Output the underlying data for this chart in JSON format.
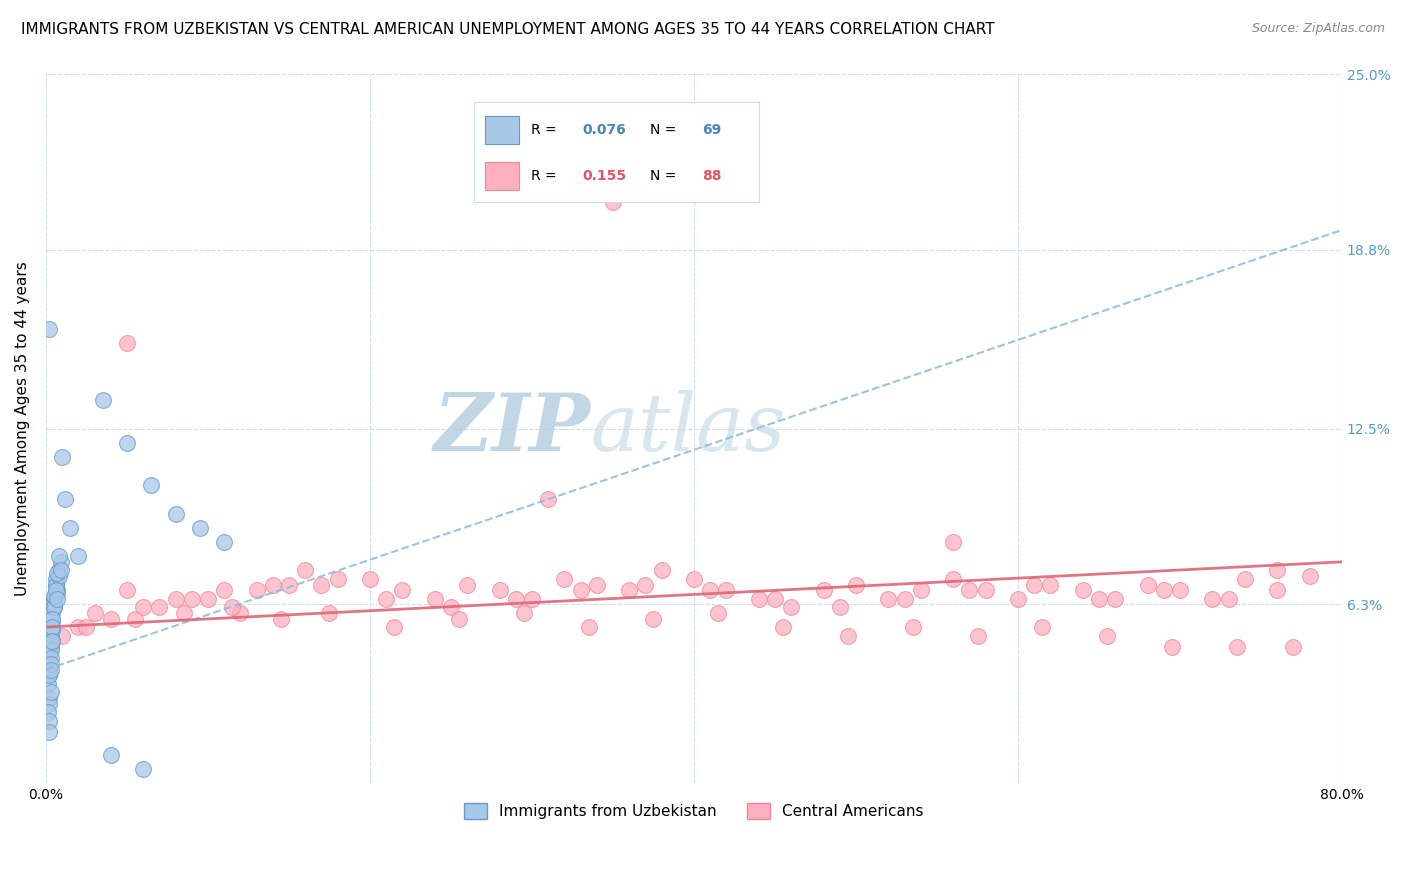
{
  "title": "IMMIGRANTS FROM UZBEKISTAN VS CENTRAL AMERICAN UNEMPLOYMENT AMONG AGES 35 TO 44 YEARS CORRELATION CHART",
  "source": "Source: ZipAtlas.com",
  "ylabel": "Unemployment Among Ages 35 to 44 years",
  "xlim": [
    0.0,
    0.8
  ],
  "ylim": [
    0.0,
    0.25
  ],
  "yticks": [
    0.063,
    0.125,
    0.188,
    0.25
  ],
  "ytick_labels": [
    "6.3%",
    "12.5%",
    "18.8%",
    "25.0%"
  ],
  "xticks": [
    0.0,
    0.2,
    0.4,
    0.6,
    0.8
  ],
  "xtick_labels": [
    "0.0%",
    "",
    "",
    "",
    "80.0%"
  ],
  "series1_label": "Immigrants from Uzbekistan",
  "series1_R": "0.076",
  "series1_N": "69",
  "series1_color": "#a8c8e8",
  "series1_edge": "#6699cc",
  "series2_label": "Central Americans",
  "series2_R": "0.155",
  "series2_N": "88",
  "series2_color": "#ffb0c0",
  "series2_edge": "#ee8899",
  "trendline1_color": "#88bbdd",
  "trendline2_color": "#dd6677",
  "background_color": "#ffffff",
  "watermark": "ZIPatlas",
  "watermark_color": "#ccdde8",
  "grid_color": "#ccddee",
  "title_fontsize": 11,
  "axis_label_fontsize": 11,
  "tick_fontsize": 10,
  "right_tick_color": "#5599cc",
  "legend_R_color1": "#4488bb",
  "legend_R_color2": "#dd5566",
  "legend_N_color1": "#4488bb",
  "legend_N_color2": "#dd5566",
  "blue_x": [
    0.002,
    0.004,
    0.001,
    0.003,
    0.005,
    0.002,
    0.001,
    0.003,
    0.002,
    0.004,
    0.006,
    0.003,
    0.002,
    0.005,
    0.001,
    0.007,
    0.003,
    0.002,
    0.004,
    0.001,
    0.008,
    0.003,
    0.005,
    0.002,
    0.006,
    0.004,
    0.003,
    0.001,
    0.007,
    0.002,
    0.009,
    0.004,
    0.002,
    0.006,
    0.003,
    0.001,
    0.005,
    0.008,
    0.002,
    0.003,
    0.01,
    0.004,
    0.002,
    0.007,
    0.003,
    0.005,
    0.002,
    0.001,
    0.004,
    0.003,
    0.012,
    0.006,
    0.003,
    0.008,
    0.002,
    0.015,
    0.004,
    0.009,
    0.002,
    0.007,
    0.02,
    0.035,
    0.05,
    0.065,
    0.08,
    0.095,
    0.11,
    0.04,
    0.06
  ],
  "blue_y": [
    0.16,
    0.055,
    0.06,
    0.058,
    0.062,
    0.055,
    0.052,
    0.048,
    0.045,
    0.05,
    0.07,
    0.058,
    0.053,
    0.065,
    0.047,
    0.068,
    0.055,
    0.042,
    0.06,
    0.045,
    0.075,
    0.052,
    0.063,
    0.048,
    0.072,
    0.057,
    0.05,
    0.043,
    0.067,
    0.04,
    0.078,
    0.054,
    0.038,
    0.07,
    0.047,
    0.035,
    0.062,
    0.073,
    0.038,
    0.044,
    0.115,
    0.058,
    0.03,
    0.074,
    0.042,
    0.066,
    0.028,
    0.025,
    0.055,
    0.04,
    0.1,
    0.068,
    0.032,
    0.08,
    0.022,
    0.09,
    0.05,
    0.075,
    0.018,
    0.065,
    0.08,
    0.135,
    0.12,
    0.105,
    0.095,
    0.09,
    0.085,
    0.01,
    0.005
  ],
  "pink_x": [
    0.35,
    0.05,
    0.08,
    0.12,
    0.15,
    0.18,
    0.02,
    0.04,
    0.06,
    0.09,
    0.11,
    0.14,
    0.16,
    0.2,
    0.22,
    0.24,
    0.26,
    0.28,
    0.3,
    0.32,
    0.34,
    0.36,
    0.38,
    0.4,
    0.42,
    0.44,
    0.46,
    0.48,
    0.5,
    0.52,
    0.54,
    0.56,
    0.58,
    0.6,
    0.62,
    0.64,
    0.66,
    0.68,
    0.7,
    0.72,
    0.74,
    0.76,
    0.03,
    0.07,
    0.1,
    0.13,
    0.17,
    0.21,
    0.25,
    0.29,
    0.33,
    0.37,
    0.41,
    0.45,
    0.49,
    0.53,
    0.57,
    0.61,
    0.65,
    0.69,
    0.73,
    0.01,
    0.025,
    0.055,
    0.085,
    0.115,
    0.145,
    0.175,
    0.215,
    0.255,
    0.295,
    0.335,
    0.375,
    0.415,
    0.455,
    0.495,
    0.535,
    0.575,
    0.615,
    0.655,
    0.695,
    0.735,
    0.77,
    0.05,
    0.31,
    0.56,
    0.76,
    0.78
  ],
  "pink_y": [
    0.205,
    0.068,
    0.065,
    0.06,
    0.07,
    0.072,
    0.055,
    0.058,
    0.062,
    0.065,
    0.068,
    0.07,
    0.075,
    0.072,
    0.068,
    0.065,
    0.07,
    0.068,
    0.065,
    0.072,
    0.07,
    0.068,
    0.075,
    0.072,
    0.068,
    0.065,
    0.062,
    0.068,
    0.07,
    0.065,
    0.068,
    0.072,
    0.068,
    0.065,
    0.07,
    0.068,
    0.065,
    0.07,
    0.068,
    0.065,
    0.072,
    0.068,
    0.06,
    0.062,
    0.065,
    0.068,
    0.07,
    0.065,
    0.062,
    0.065,
    0.068,
    0.07,
    0.068,
    0.065,
    0.062,
    0.065,
    0.068,
    0.07,
    0.065,
    0.068,
    0.065,
    0.052,
    0.055,
    0.058,
    0.06,
    0.062,
    0.058,
    0.06,
    0.055,
    0.058,
    0.06,
    0.055,
    0.058,
    0.06,
    0.055,
    0.052,
    0.055,
    0.052,
    0.055,
    0.052,
    0.048,
    0.048,
    0.048,
    0.155,
    0.1,
    0.085,
    0.075,
    0.073
  ],
  "trendline1_x": [
    0.0,
    0.8
  ],
  "trendline1_y": [
    0.04,
    0.195
  ],
  "trendline2_x": [
    0.0,
    0.8
  ],
  "trendline2_y": [
    0.055,
    0.078
  ]
}
